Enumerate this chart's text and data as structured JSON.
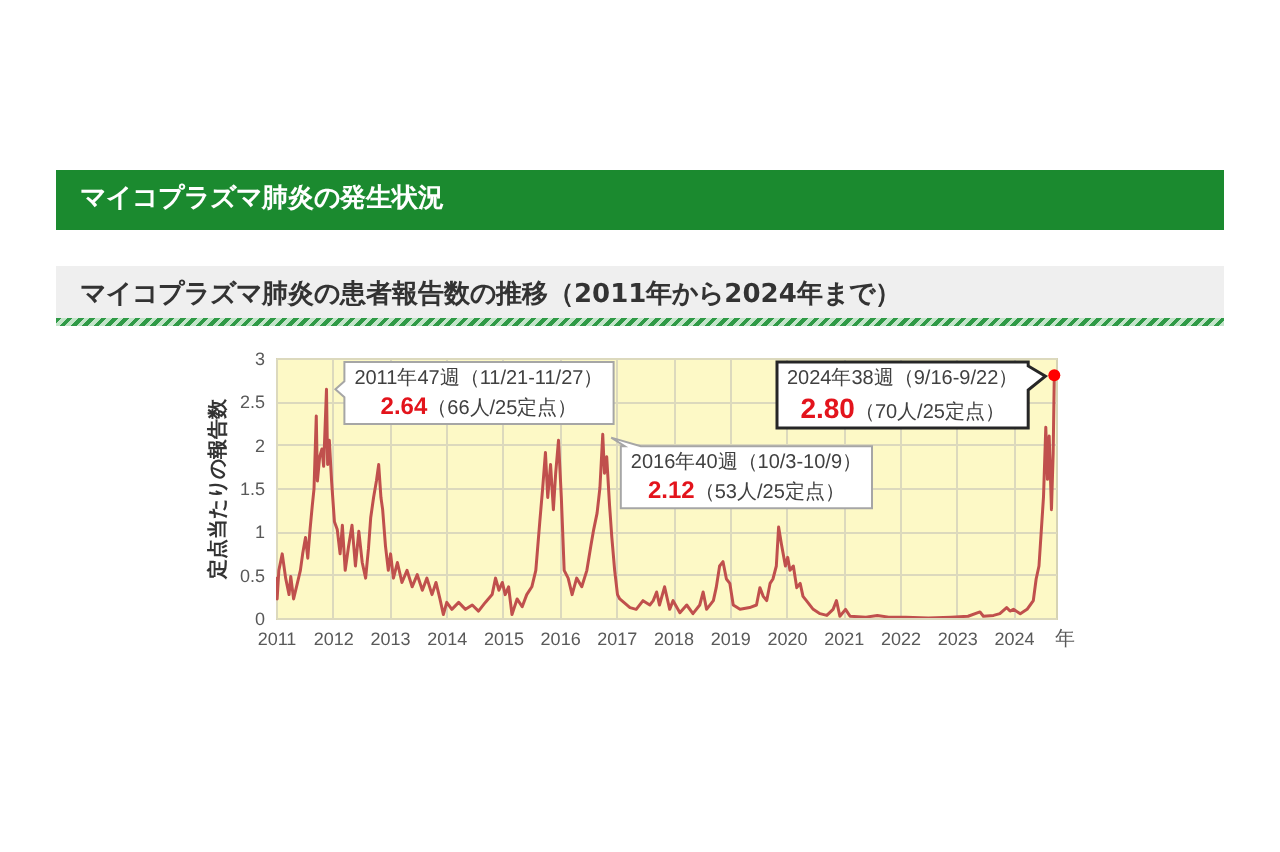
{
  "chart_data": {
    "type": "line",
    "title": "マイコプラズマ肺炎の発生状況",
    "subtitle": "マイコプラズマ肺炎の患者報告数の推移（2011年から2024年まで）",
    "xlabel": "年",
    "ylabel": "定点当たりの報告数",
    "x": [
      2011.0,
      2011.02,
      2011.05,
      2011.11,
      2011.17,
      2011.23,
      2011.26,
      2011.31,
      2011.38,
      2011.43,
      2011.47,
      2011.52,
      2011.56,
      2011.6,
      2011.64,
      2011.67,
      2011.71,
      2011.73,
      2011.77,
      2011.81,
      2011.84,
      2011.89,
      2011.91,
      2011.94,
      2011.98,
      2012.03,
      2012.08,
      2012.13,
      2012.17,
      2012.22,
      2012.28,
      2012.34,
      2012.4,
      2012.46,
      2012.52,
      2012.58,
      2012.63,
      2012.67,
      2012.72,
      2012.77,
      2012.81,
      2012.85,
      2012.88,
      2012.93,
      2012.98,
      2013.02,
      2013.07,
      2013.14,
      2013.22,
      2013.31,
      2013.4,
      2013.49,
      2013.58,
      2013.66,
      2013.75,
      2013.82,
      2013.89,
      2013.95,
      2014.01,
      2014.1,
      2014.22,
      2014.34,
      2014.46,
      2014.57,
      2014.69,
      2014.81,
      2014.87,
      2014.93,
      2014.99,
      2015.04,
      2015.1,
      2015.16,
      2015.25,
      2015.34,
      2015.42,
      2015.51,
      2015.58,
      2015.65,
      2015.7,
      2015.75,
      2015.79,
      2015.84,
      2015.89,
      2015.93,
      2015.98,
      2016.03,
      2016.08,
      2016.15,
      2016.22,
      2016.3,
      2016.39,
      2016.48,
      2016.55,
      2016.6,
      2016.66,
      2016.71,
      2016.76,
      2016.79,
      2016.83,
      2016.88,
      2016.92,
      2016.97,
      2017.02,
      2017.06,
      2017.24,
      2017.35,
      2017.47,
      2017.59,
      2017.65,
      2017.71,
      2017.76,
      2017.85,
      2017.94,
      2018.0,
      2018.12,
      2018.24,
      2018.35,
      2018.47,
      2018.53,
      2018.59,
      2018.71,
      2018.76,
      2018.82,
      2018.88,
      2018.94,
      2019.0,
      2019.06,
      2019.18,
      2019.35,
      2019.47,
      2019.53,
      2019.59,
      2019.65,
      2019.71,
      2019.76,
      2019.82,
      2019.86,
      2019.91,
      2019.98,
      2020.02,
      2020.06,
      2020.12,
      2020.18,
      2020.24,
      2020.29,
      2020.35,
      2020.47,
      2020.59,
      2020.71,
      2020.82,
      2020.88,
      2020.94,
      2021.04,
      2021.12,
      2021.4,
      2021.6,
      2021.8,
      2022.1,
      2022.5,
      2022.9,
      2023.2,
      2023.41,
      2023.47,
      2023.65,
      2023.76,
      2023.88,
      2023.94,
      2024.0,
      2024.12,
      2024.24,
      2024.35,
      2024.4,
      2024.45,
      2024.49,
      2024.53,
      2024.57,
      2024.6,
      2024.63,
      2024.67,
      2024.7,
      2024.72
    ],
    "series": [
      {
        "color": "#c0504d",
        "values": [
          0.46,
          0.22,
          0.55,
          0.74,
          0.46,
          0.27,
          0.48,
          0.22,
          0.41,
          0.55,
          0.74,
          0.93,
          0.69,
          1.02,
          1.3,
          1.49,
          2.33,
          1.58,
          1.86,
          1.95,
          1.75,
          2.64,
          1.77,
          2.05,
          1.58,
          1.11,
          1.02,
          0.74,
          1.07,
          0.55,
          0.83,
          1.07,
          0.6,
          1.0,
          0.64,
          0.46,
          0.8,
          1.16,
          1.39,
          1.58,
          1.77,
          1.39,
          1.25,
          0.83,
          0.55,
          0.74,
          0.46,
          0.64,
          0.41,
          0.55,
          0.36,
          0.5,
          0.32,
          0.46,
          0.27,
          0.41,
          0.22,
          0.04,
          0.18,
          0.1,
          0.18,
          0.1,
          0.15,
          0.08,
          0.18,
          0.27,
          0.46,
          0.32,
          0.41,
          0.27,
          0.36,
          0.04,
          0.22,
          0.13,
          0.27,
          0.36,
          0.55,
          1.11,
          1.49,
          1.91,
          1.39,
          1.77,
          1.25,
          1.67,
          2.05,
          1.39,
          0.55,
          0.46,
          0.27,
          0.46,
          0.36,
          0.55,
          0.83,
          1.02,
          1.21,
          1.5,
          2.12,
          1.67,
          1.86,
          1.3,
          0.93,
          0.55,
          0.27,
          0.22,
          0.12,
          0.1,
          0.2,
          0.15,
          0.2,
          0.3,
          0.15,
          0.36,
          0.1,
          0.2,
          0.06,
          0.15,
          0.05,
          0.15,
          0.3,
          0.1,
          0.2,
          0.35,
          0.6,
          0.65,
          0.45,
          0.4,
          0.15,
          0.1,
          0.12,
          0.15,
          0.35,
          0.25,
          0.2,
          0.4,
          0.45,
          0.6,
          1.05,
          0.85,
          0.6,
          0.7,
          0.55,
          0.6,
          0.35,
          0.4,
          0.25,
          0.2,
          0.1,
          0.05,
          0.03,
          0.1,
          0.2,
          0.02,
          0.1,
          0.02,
          0.01,
          0.03,
          0.01,
          0.01,
          0,
          0.01,
          0.02,
          0.07,
          0.02,
          0.03,
          0.05,
          0.12,
          0.08,
          0.1,
          0.05,
          0.1,
          0.2,
          0.45,
          0.6,
          1.0,
          1.4,
          2.2,
          1.6,
          2.1,
          1.25,
          1.9,
          2.8
        ]
      },
      {
        "type": "scatter",
        "x": [
          2024.72
        ],
        "color": "#ff0000",
        "values": [
          2.8
        ]
      }
    ],
    "xlim": [
      2011,
      2024.75
    ],
    "ylim": [
      0,
      3
    ],
    "xticks": [
      2011,
      2012,
      2013,
      2014,
      2015,
      2016,
      2017,
      2018,
      2019,
      2020,
      2021,
      2022,
      2023,
      2024
    ],
    "yticks": [
      0,
      0.5,
      1,
      1.5,
      2,
      2.5,
      3
    ],
    "grid": true,
    "annotations": [
      {
        "text": "2011年47週（11/21-11/27）\n2.64（66人/25定点）",
        "x": 2011.89,
        "y": 2.64
      },
      {
        "text": "2016年40週（10/3-10/9）\n2.12（53人/25定点）",
        "x": 2016.76,
        "y": 2.12
      },
      {
        "text": "2024年38週（9/16-9/22）\n2.80（70人/25定点）",
        "x": 2024.72,
        "y": 2.8
      }
    ]
  }
}
